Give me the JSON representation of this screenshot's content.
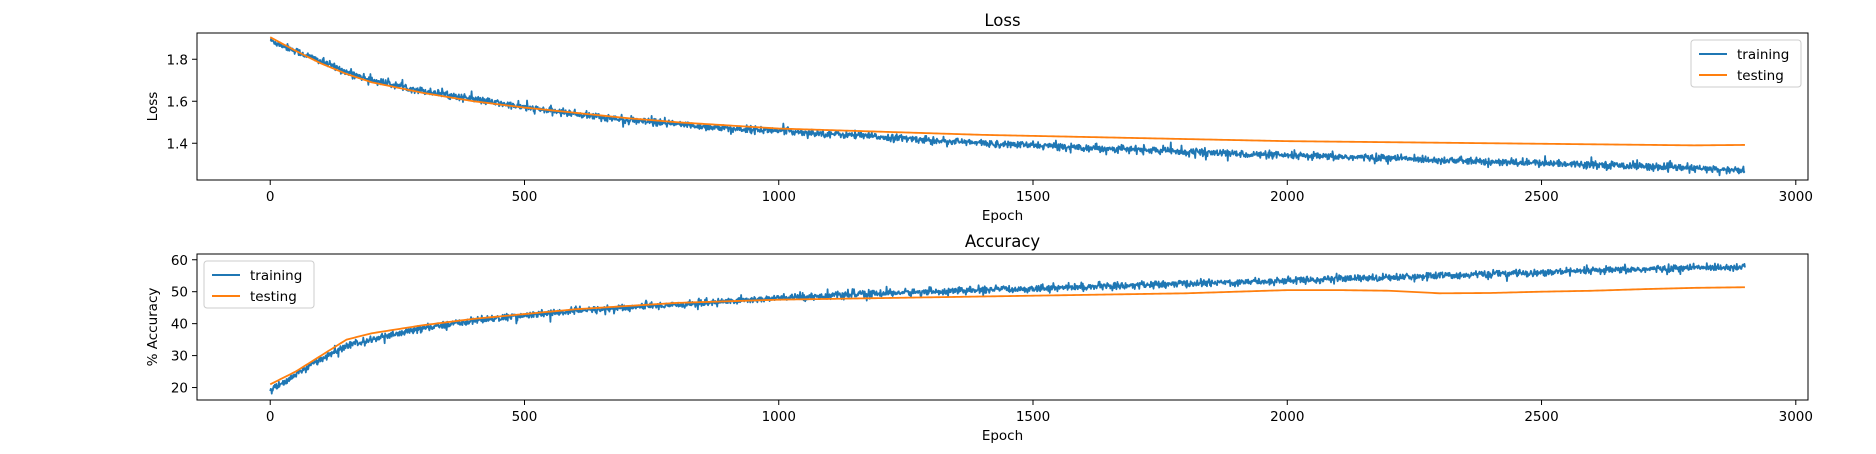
{
  "chart_data": [
    {
      "type": "line",
      "title": "Loss",
      "xlabel": "Epoch",
      "ylabel": "Loss",
      "xlim": [
        -144,
        3024
      ],
      "ylim": [
        1.225,
        1.925
      ],
      "xticks": [
        0,
        500,
        1000,
        1500,
        2000,
        2500,
        3000
      ],
      "xtick_labels": [
        "0",
        "500",
        "1000",
        "1500",
        "2000",
        "2500",
        "3000"
      ],
      "yticks": [
        1.4,
        1.6,
        1.8
      ],
      "ytick_labels": [
        "1.4",
        "1.6",
        "1.8"
      ],
      "legend_position": "upper right",
      "grid": false,
      "series": [
        {
          "name": "training",
          "color": "#1f77b4",
          "noisy": true,
          "x": [
            0,
            50,
            100,
            150,
            200,
            300,
            400,
            500,
            600,
            700,
            800,
            900,
            1000,
            1200,
            1400,
            1600,
            1800,
            2000,
            2200,
            2400,
            2600,
            2800,
            2900
          ],
          "y": [
            1.89,
            1.84,
            1.79,
            1.74,
            1.7,
            1.65,
            1.61,
            1.57,
            1.54,
            1.51,
            1.49,
            1.47,
            1.46,
            1.43,
            1.4,
            1.38,
            1.36,
            1.34,
            1.33,
            1.31,
            1.3,
            1.28,
            1.27
          ]
        },
        {
          "name": "testing",
          "color": "#ff7f0e",
          "noisy": false,
          "x": [
            0,
            50,
            100,
            150,
            200,
            300,
            400,
            500,
            600,
            700,
            800,
            900,
            1000,
            1200,
            1400,
            1600,
            1800,
            2000,
            2200,
            2400,
            2600,
            2800,
            2900
          ],
          "y": [
            1.905,
            1.84,
            1.78,
            1.73,
            1.69,
            1.64,
            1.6,
            1.57,
            1.545,
            1.52,
            1.5,
            1.485,
            1.47,
            1.455,
            1.44,
            1.43,
            1.42,
            1.41,
            1.405,
            1.4,
            1.395,
            1.39,
            1.392
          ]
        }
      ]
    },
    {
      "type": "line",
      "title": "Accuracy",
      "xlabel": "Epoch",
      "ylabel": "% Accuracy",
      "xlim": [
        -144,
        3024
      ],
      "ylim": [
        16.1,
        61.8
      ],
      "xticks": [
        0,
        500,
        1000,
        1500,
        2000,
        2500,
        3000
      ],
      "xtick_labels": [
        "0",
        "500",
        "1000",
        "1500",
        "2000",
        "2500",
        "3000"
      ],
      "yticks": [
        20,
        30,
        40,
        50,
        60
      ],
      "ytick_labels": [
        "20",
        "30",
        "40",
        "50",
        "60"
      ],
      "legend_position": "upper left",
      "grid": false,
      "series": [
        {
          "name": "training",
          "color": "#1f77b4",
          "noisy": true,
          "x": [
            0,
            50,
            100,
            150,
            200,
            300,
            400,
            500,
            600,
            700,
            800,
            900,
            1000,
            1200,
            1400,
            1600,
            1800,
            2000,
            2200,
            2400,
            2600,
            2800,
            2900
          ],
          "y": [
            19,
            24,
            29,
            33,
            35,
            38.5,
            41,
            42.5,
            44,
            45,
            46,
            47,
            48,
            49.5,
            50.5,
            51.5,
            52.5,
            53.5,
            54.5,
            55.5,
            56.5,
            57.5,
            57.8
          ]
        },
        {
          "name": "testing",
          "color": "#ff7f0e",
          "noisy": false,
          "x": [
            0,
            50,
            100,
            150,
            200,
            300,
            400,
            500,
            600,
            700,
            800,
            900,
            1000,
            1200,
            1400,
            1600,
            1800,
            2000,
            2100,
            2200,
            2300,
            2400,
            2500,
            2600,
            2700,
            2800,
            2900
          ],
          "y": [
            21,
            25,
            30,
            35,
            37,
            39.5,
            41.5,
            43,
            44.5,
            45.5,
            46.5,
            47,
            47.5,
            48,
            48.5,
            49,
            49.5,
            50.5,
            50.5,
            50.3,
            49.5,
            49.6,
            50,
            50.3,
            50.8,
            51.2,
            51.4
          ]
        }
      ]
    }
  ]
}
